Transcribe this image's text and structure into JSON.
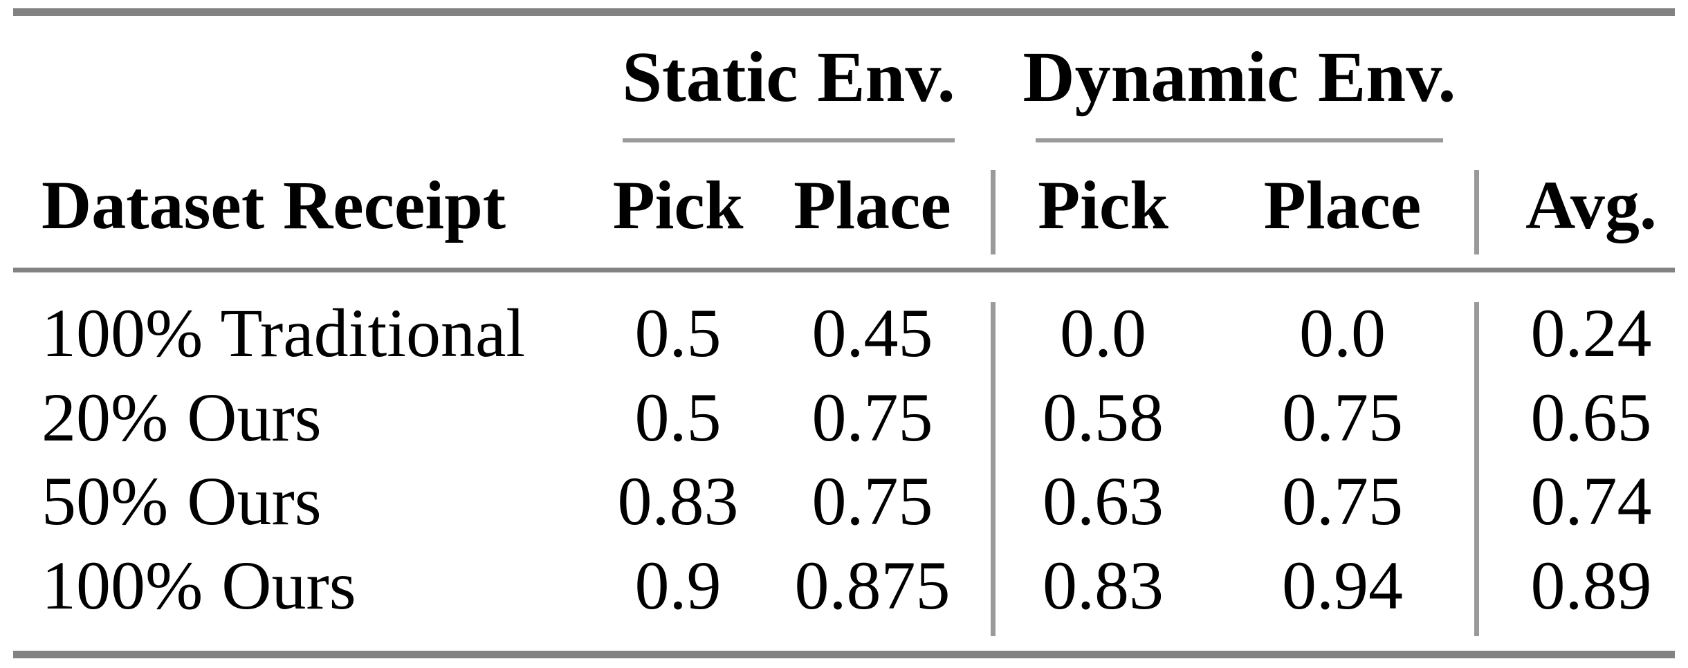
{
  "table": {
    "row_header_label": "Dataset Receipt",
    "groups": [
      {
        "label": "Static Env."
      },
      {
        "label": "Dynamic Env."
      }
    ],
    "columns": {
      "static_pick": "Pick",
      "static_place": "Place",
      "dynamic_pick": "Pick",
      "dynamic_place": "Place",
      "avg": "Avg."
    },
    "rows": [
      {
        "label": "100% Traditional",
        "static_pick": "0.5",
        "static_place": "0.45",
        "dynamic_pick": "0.0",
        "dynamic_place": "0.0",
        "avg": "0.24"
      },
      {
        "label": "20% Ours",
        "static_pick": "0.5",
        "static_place": "0.75",
        "dynamic_pick": "0.58",
        "dynamic_place": "0.75",
        "avg": "0.65"
      },
      {
        "label": "50% Ours",
        "static_pick": "0.83",
        "static_place": "0.75",
        "dynamic_pick": "0.63",
        "dynamic_place": "0.75",
        "avg": "0.74"
      },
      {
        "label": "100% Ours",
        "static_pick": "0.9",
        "static_place": "0.875",
        "dynamic_pick": "0.83",
        "dynamic_place": "0.94",
        "avg": "0.89"
      }
    ],
    "colors": {
      "rule": "#828282",
      "light_rule": "#9a9a9a",
      "text": "#000000",
      "background": "#ffffff"
    }
  },
  "chart_data": {
    "type": "table",
    "title": "",
    "row_header": "Dataset Receipt",
    "column_groups": [
      "Static Env.",
      "Dynamic Env."
    ],
    "columns": [
      "Static Env. Pick",
      "Static Env. Place",
      "Dynamic Env. Pick",
      "Dynamic Env. Place",
      "Avg."
    ],
    "categories": [
      "100% Traditional",
      "20% Ours",
      "50% Ours",
      "100% Ours"
    ],
    "series": [
      {
        "name": "Static Env. Pick",
        "values": [
          0.5,
          0.5,
          0.83,
          0.9
        ]
      },
      {
        "name": "Static Env. Place",
        "values": [
          0.45,
          0.75,
          0.75,
          0.875
        ]
      },
      {
        "name": "Dynamic Env. Pick",
        "values": [
          0.0,
          0.58,
          0.63,
          0.83
        ]
      },
      {
        "name": "Dynamic Env. Place",
        "values": [
          0.0,
          0.75,
          0.75,
          0.94
        ]
      },
      {
        "name": "Avg.",
        "values": [
          0.24,
          0.65,
          0.74,
          0.89
        ]
      }
    ]
  }
}
